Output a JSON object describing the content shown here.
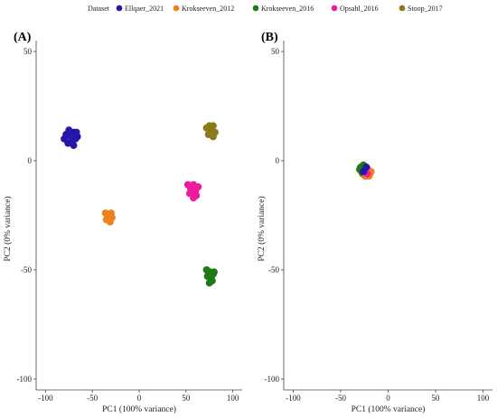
{
  "legend": {
    "title": "Dataset",
    "entries": [
      {
        "label": "Ellqaer_2021",
        "color": "#2416a6"
      },
      {
        "label": "Krokseeven_2012",
        "color": "#f07f1e"
      },
      {
        "label": "Krokseeven_2016",
        "color": "#1d7a16"
      },
      {
        "label": "Opsahl_2016",
        "color": "#ee1a9d"
      },
      {
        "label": "Stoop_2017",
        "color": "#8a7a1a"
      }
    ]
  },
  "chart_data": [
    {
      "type": "scatter",
      "panel_label": "(A)",
      "xlabel": "PC1 (100% variance)",
      "ylabel": "PC2 (0% variance)",
      "xlim": [
        -110,
        110
      ],
      "ylim": [
        -105,
        55
      ],
      "xticks": [
        -100,
        -50,
        0,
        50,
        100
      ],
      "yticks": [
        50,
        0,
        -50,
        -100
      ],
      "grid": false,
      "series": [
        {
          "name": "Ellqaer_2021",
          "color": "#2416a6",
          "points": [
            [
              -75,
              14
            ],
            [
              -70,
              13
            ],
            [
              -67,
              13
            ],
            [
              -78,
              12
            ],
            [
              -73,
              11
            ],
            [
              -68,
              10
            ],
            [
              -80,
              10
            ],
            [
              -72,
              9
            ],
            [
              -76,
              8
            ],
            [
              -70,
              7
            ],
            [
              -66,
              11
            ],
            [
              -74,
              13
            ]
          ]
        },
        {
          "name": "Krokseeven_2012",
          "color": "#f07f1e",
          "points": [
            [
              -36,
              -24
            ],
            [
              -32,
              -25
            ],
            [
              -29,
              -26
            ],
            [
              -35,
              -27
            ],
            [
              -31,
              -28
            ],
            [
              -34,
              -25
            ],
            [
              -30,
              -24
            ]
          ]
        },
        {
          "name": "Krokseeven_2016",
          "color": "#1d7a16",
          "points": [
            [
              72,
              -50
            ],
            [
              76,
              -51
            ],
            [
              79,
              -52
            ],
            [
              73,
              -53
            ],
            [
              77,
              -54
            ],
            [
              75,
              -56
            ],
            [
              80,
              -51
            ],
            [
              74,
              -52
            ],
            [
              78,
              -55
            ]
          ]
        },
        {
          "name": "Opsahl_2016",
          "color": "#ee1a9d",
          "points": [
            [
              52,
              -11
            ],
            [
              58,
              -11
            ],
            [
              63,
              -12
            ],
            [
              55,
              -13
            ],
            [
              60,
              -14
            ],
            [
              54,
              -15
            ],
            [
              58,
              -17
            ],
            [
              61,
              -16
            ],
            [
              56,
              -12
            ]
          ]
        },
        {
          "name": "Stoop_2017",
          "color": "#8a7a1a",
          "points": [
            [
              75,
              16
            ],
            [
              79,
              16
            ],
            [
              72,
              15
            ],
            [
              77,
              14
            ],
            [
              81,
              13
            ],
            [
              74,
              12
            ],
            [
              79,
              11
            ],
            [
              76,
              13
            ]
          ]
        }
      ]
    },
    {
      "type": "scatter",
      "panel_label": "(B)",
      "xlabel": "PC1 (100% variance)",
      "ylabel": "PC2 (0% variance)",
      "xlim": [
        -110,
        110
      ],
      "ylim": [
        -105,
        55
      ],
      "xticks": [
        -100,
        -50,
        0,
        50,
        100
      ],
      "yticks": [
        50,
        0,
        -50,
        -100
      ],
      "grid": false,
      "series": [
        {
          "name": "Stoop_2017",
          "color": "#8a7a1a",
          "points": [
            [
              -27,
              -6
            ],
            [
              -24,
              -7
            ],
            [
              -21,
              -6
            ],
            [
              -25,
              -4
            ]
          ]
        },
        {
          "name": "Krokseeven_2016",
          "color": "#1d7a16",
          "points": [
            [
              -29,
              -3
            ],
            [
              -26,
              -2
            ],
            [
              -23,
              -3
            ],
            [
              -28,
              -5
            ],
            [
              -25,
              -4
            ],
            [
              -30,
              -4
            ]
          ]
        },
        {
          "name": "Krokseeven_2012",
          "color": "#f07f1e",
          "points": [
            [
              -22,
              -5
            ],
            [
              -19,
              -6
            ],
            [
              -20,
              -7
            ],
            [
              -23,
              -7
            ],
            [
              -18,
              -5
            ],
            [
              -21,
              -4
            ]
          ]
        },
        {
          "name": "Opsahl_2016",
          "color": "#ee1a9d",
          "points": [
            [
              -22,
              -6
            ]
          ]
        },
        {
          "name": "Ellqaer_2021",
          "color": "#2416a6",
          "points": [
            [
              -26,
              -5
            ],
            [
              -23,
              -3
            ]
          ]
        }
      ]
    }
  ]
}
